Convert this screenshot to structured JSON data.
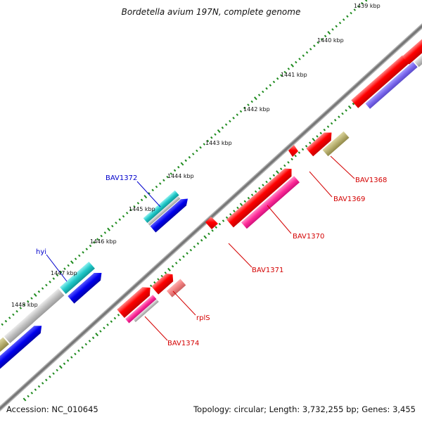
{
  "title": "Bordetella avium 197N, complete genome",
  "footer": {
    "accession": "Accession: NC_010645",
    "summary": "Topology: circular; Length: 3,732,255 bp; Genes: 3,455"
  },
  "colors": {
    "backbone_dark": "#777777",
    "backbone_light": "#b0b0b0",
    "tick_green": "#1d8a1d",
    "red": "#ff0000",
    "pink": "#ff3399",
    "salmon": "#f08080",
    "cyan": "#20c8c8",
    "blue": "#0000ee",
    "lavender": "#7b68ee",
    "olive": "#b8b070",
    "gray": "#c0c0c0",
    "label_red": "#d40000",
    "label_blue": "#0000cc"
  },
  "ticks": [
    {
      "label": "1439 kbp"
    },
    {
      "label": "1440 kbp"
    },
    {
      "label": "1441 kbp"
    },
    {
      "label": "1442 kbp"
    },
    {
      "label": "1443 kbp"
    },
    {
      "label": "1444 kbp"
    },
    {
      "label": "1445 kbp"
    },
    {
      "label": "1446 kbp"
    },
    {
      "label": "1447 kbp"
    },
    {
      "label": "1448 kbp"
    }
  ],
  "gene_labels": [
    {
      "name": "BAV1368",
      "color": "label_red"
    },
    {
      "name": "BAV1369",
      "color": "label_red"
    },
    {
      "name": "BAV1370",
      "color": "label_red"
    },
    {
      "name": "BAV1371",
      "color": "label_red"
    },
    {
      "name": "rplS",
      "color": "label_red"
    },
    {
      "name": "BAV1374",
      "color": "label_red"
    },
    {
      "name": "BAV1372",
      "color": "label_blue"
    },
    {
      "name": "hyi",
      "color": "label_blue"
    }
  ]
}
